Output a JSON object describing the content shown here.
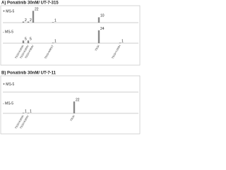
{
  "chart_data": [
    {
      "type": "bar",
      "title": "A) Ponatinib 30nM/ UT-7-315",
      "categories": [
        "T315I+E255K",
        "T315I+E255V",
        "T315I+F359V",
        "T315I+M351T",
        "T315I",
        "T315I+Y253H"
      ],
      "series": [
        {
          "name": "+ MS-5",
          "color": "#888888",
          "values": [
            2,
            2,
            22,
            1,
            10,
            null
          ]
        },
        {
          "name": "- MS-5",
          "color": "#888888",
          "values": [
            5,
            5,
            null,
            1,
            24,
            1
          ]
        }
      ],
      "ylim": [
        0,
        25
      ]
    },
    {
      "type": "bar",
      "title": "B) Ponatinib 30nM/ UT-7-11",
      "categories": [
        "T315I+E255K",
        "T315I+E255V",
        "T315I"
      ],
      "series": [
        {
          "name": "+ MS-5",
          "color": "#888888",
          "values": [
            null,
            null,
            null
          ]
        },
        {
          "name": "- MS-5",
          "color": "#888888",
          "values": [
            1,
            1,
            22
          ]
        }
      ],
      "ylim": [
        0,
        25
      ]
    }
  ]
}
